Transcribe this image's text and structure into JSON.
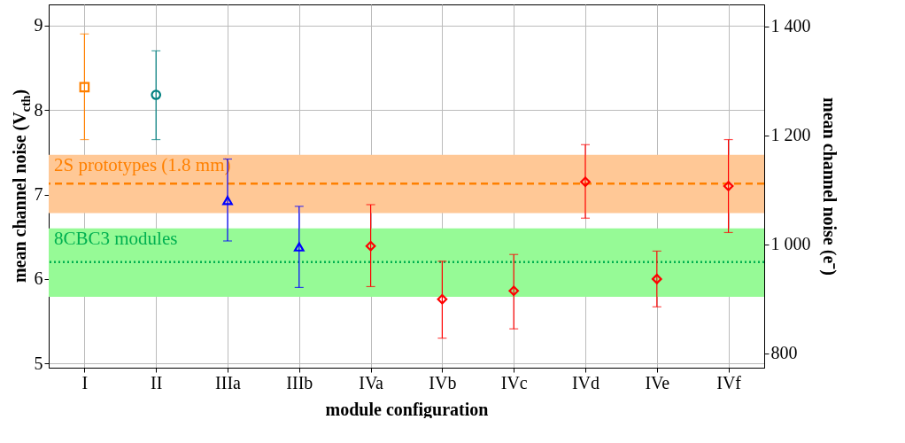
{
  "chart_data": {
    "type": "scatter",
    "xlabel": "module configuration",
    "ylabel": "mean channel noise (V$_{cth}$)",
    "y2label": "mean channel noise (e⁻)",
    "categories": [
      "I",
      "II",
      "IIIa",
      "IIIb",
      "IVa",
      "IVb",
      "IVc",
      "IVd",
      "IVe",
      "IVf"
    ],
    "series": [
      {
        "color": "#ff8000",
        "marker": "square",
        "values": [
          8.27,
          null,
          null,
          null,
          null,
          null,
          null,
          null,
          null,
          null
        ],
        "errors": [
          [
            7.65,
            8.9
          ],
          null,
          null,
          null,
          null,
          null,
          null,
          null,
          null,
          null
        ]
      },
      {
        "color": "#008080",
        "marker": "circle",
        "values": [
          null,
          8.18,
          null,
          null,
          null,
          null,
          null,
          null,
          null,
          null
        ],
        "errors": [
          null,
          [
            7.65,
            8.7
          ],
          null,
          null,
          null,
          null,
          null,
          null,
          null,
          null
        ]
      },
      {
        "color": "#0000ff",
        "marker": "triangle",
        "values": [
          null,
          null,
          6.93,
          6.38,
          null,
          null,
          null,
          null,
          null,
          null
        ],
        "errors": [
          null,
          null,
          [
            6.45,
            7.42
          ],
          [
            5.9,
            6.86
          ],
          null,
          null,
          null,
          null,
          null,
          null
        ]
      },
      {
        "color": "#ff0000",
        "marker": "diamond",
        "values": [
          null,
          null,
          null,
          null,
          6.39,
          5.76,
          5.86,
          7.15,
          6.0,
          7.1
        ],
        "errors": [
          null,
          null,
          null,
          null,
          [
            5.91,
            6.88
          ],
          [
            5.3,
            6.21
          ],
          [
            5.41,
            6.29
          ],
          [
            6.72,
            7.59
          ],
          [
            5.67,
            6.33
          ],
          [
            6.55,
            7.65
          ]
        ]
      }
    ],
    "ylim": [
      4.95,
      9.25
    ],
    "yticks": [
      5,
      6,
      7,
      8,
      9
    ],
    "y2lim": [
      774,
      1440
    ],
    "y2ticks": [
      {
        "value": 800,
        "label": "800"
      },
      {
        "value": 1000,
        "label": "1 000"
      },
      {
        "value": 1200,
        "label": "1 200"
      },
      {
        "value": 1400,
        "label": "1 400"
      }
    ],
    "bands": [
      {
        "axis": "y",
        "from": 6.78,
        "to": 7.47,
        "label": "2S prototypes (1.8 mm)",
        "color": "#ffc896"
      },
      {
        "axis": "y",
        "from": 5.79,
        "to": 6.6,
        "label": "8CBC3 modules",
        "color": "#96fa96"
      }
    ],
    "ref_lines": [
      {
        "axis": "y",
        "value": 7.13,
        "color": "#ff8000",
        "line_style": "dashed"
      },
      {
        "axis": "y",
        "value": 6.2,
        "color": "#00b050",
        "line_style": "dotted"
      }
    ],
    "grid": true,
    "legend": false
  }
}
